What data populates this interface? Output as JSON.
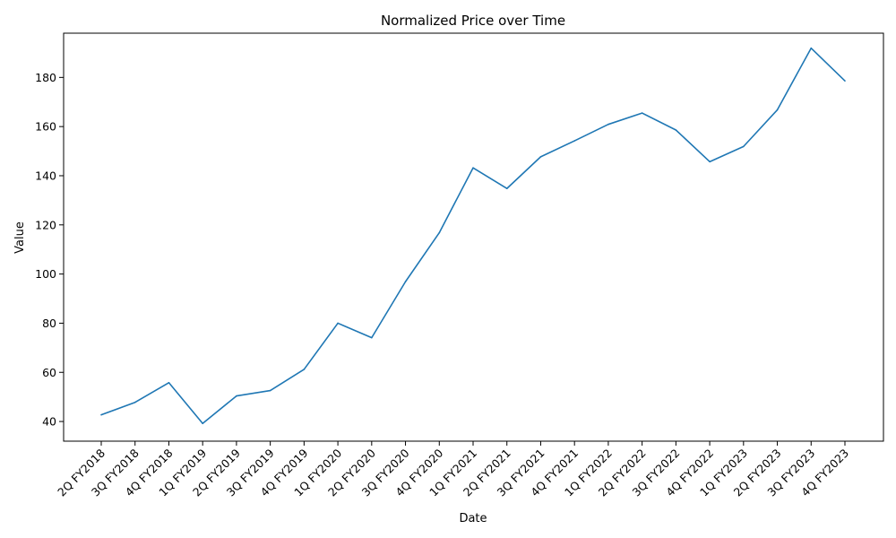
{
  "chart_data": {
    "type": "line",
    "title": "Normalized Price over Time",
    "xlabel": "Date",
    "ylabel": "Value",
    "categories": [
      "2Q FY2018",
      "3Q FY2018",
      "4Q FY2018",
      "1Q FY2019",
      "2Q FY2019",
      "3Q FY2019",
      "4Q FY2019",
      "1Q FY2020",
      "2Q FY2020",
      "3Q FY2020",
      "4Q FY2020",
      "1Q FY2021",
      "2Q FY2021",
      "3Q FY2021",
      "4Q FY2021",
      "1Q FY2022",
      "2Q FY2022",
      "3Q FY2022",
      "4Q FY2022",
      "1Q FY2023",
      "2Q FY2023",
      "3Q FY2023",
      "4Q FY2023"
    ],
    "series": [
      {
        "values": [
          42.7,
          47.8,
          55.8,
          39.2,
          50.4,
          52.6,
          61.2,
          80.0,
          74.1,
          96.9,
          116.8,
          143.2,
          134.8,
          147.7,
          154.2,
          160.9,
          165.5,
          158.6,
          145.7,
          151.9,
          166.8,
          191.9,
          178.6
        ],
        "color": "#1f77b4"
      }
    ],
    "ylim": [
      32,
      198
    ],
    "yticks": [
      40,
      60,
      80,
      100,
      120,
      140,
      160,
      180
    ],
    "grid": false,
    "legend": "none"
  }
}
